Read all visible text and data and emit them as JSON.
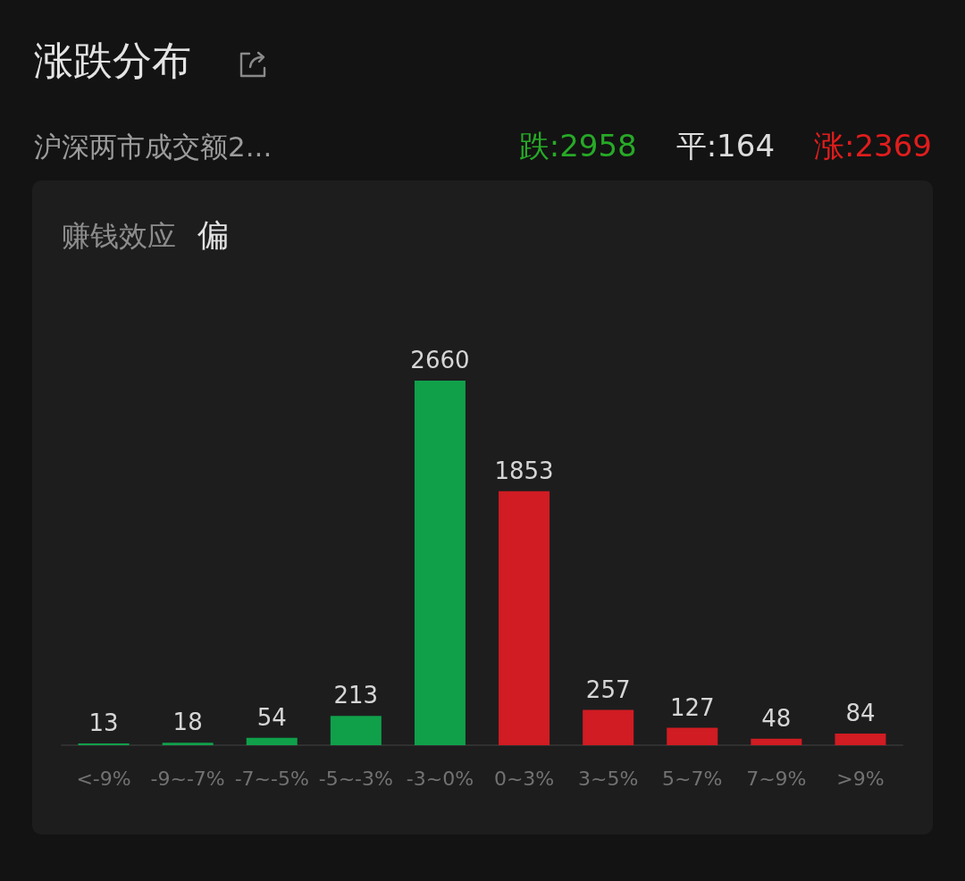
{
  "chart_data": {
    "type": "bar",
    "title": "涨跌分布",
    "subtitle": "沪深两市成交额2...",
    "categories": [
      "<-9%",
      "-9~-7%",
      "-7~-5%",
      "-5~-3%",
      "-3~0%",
      "0~3%",
      "3~5%",
      "5~7%",
      "7~9%",
      ">9%"
    ],
    "values": [
      13,
      18,
      54,
      213,
      2660,
      1853,
      257,
      127,
      48,
      84
    ],
    "colors": [
      "#10a04a",
      "#10a04a",
      "#10a04a",
      "#10a04a",
      "#10a04a",
      "#d01c22",
      "#d01c22",
      "#d01c22",
      "#d01c22",
      "#d01c22"
    ],
    "data_labels": true,
    "tick_labels": "x",
    "annotations": [
      "跌:2958",
      "平:164",
      "涨:2369",
      "赚钱效应",
      "偏"
    ]
  }
}
